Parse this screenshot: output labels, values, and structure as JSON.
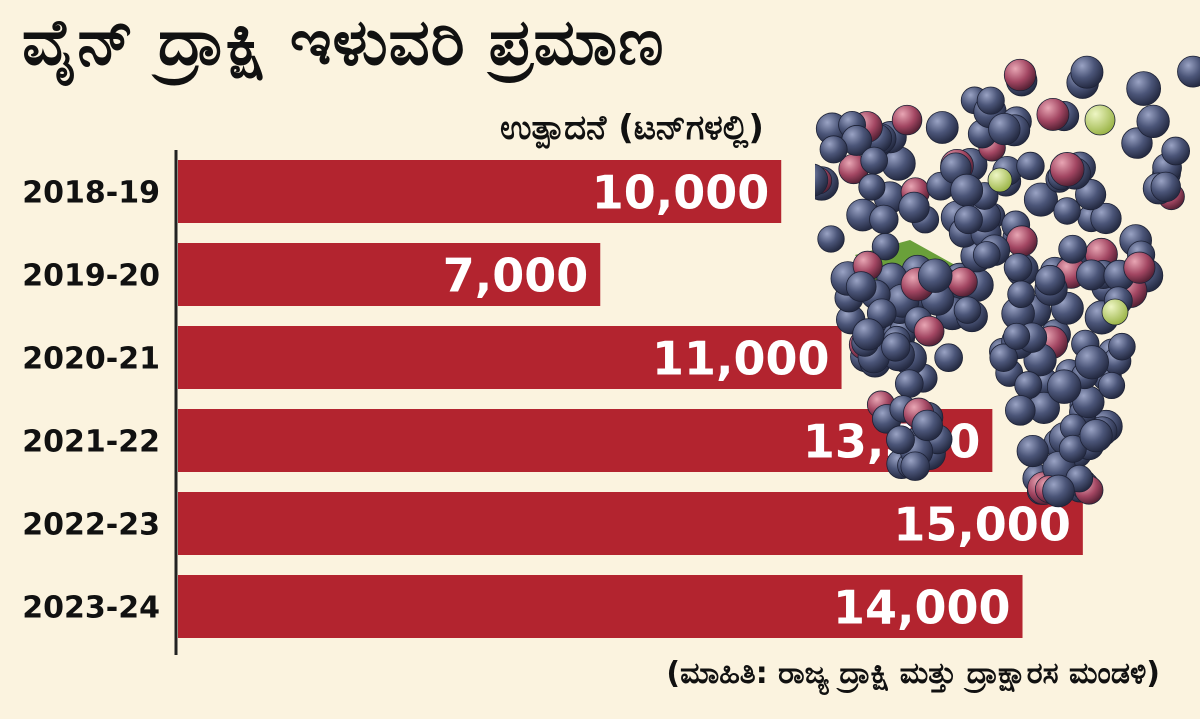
{
  "chart_data": {
    "type": "bar",
    "orientation": "horizontal",
    "title": "ವೈನ್ ದ್ರಾಕ್ಷಿ ಇಳುವರಿ ಪ್ರಮಾಣ",
    "subtitle": "ಉತ್ಪಾದನೆ (ಟನ್‌ಗಳಲ್ಲಿ)",
    "source": "(ಮಾಹಿತಿ: ರಾಜ್ಯ ದ್ರಾಕ್ಷಿ ಮತ್ತು ದ್ರಾಕ್ಷಾರಸ ಮಂಡಳಿ)",
    "categories": [
      "2018-19",
      "2019-20",
      "2020-21",
      "2021-22",
      "2022-23",
      "2023-24"
    ],
    "values": [
      10000,
      7000,
      11000,
      13500,
      15000,
      14000
    ],
    "value_labels": [
      "10,000",
      "7,000",
      "11,000",
      "13,500",
      "15,000",
      "14,000"
    ],
    "xlim": [
      0,
      15500
    ],
    "grid": false,
    "bar_color": "#b3242f",
    "label_color": "#ffffff"
  }
}
